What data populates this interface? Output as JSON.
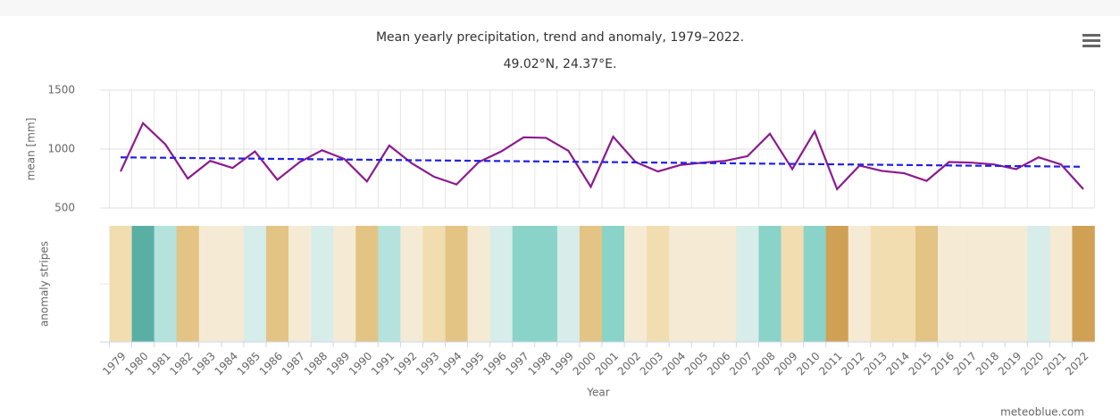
{
  "chart_data": {
    "type": "line",
    "title": "Mean yearly precipitation, trend and anomaly, 1979–2022.",
    "subtitle": "49.02°N, 24.37°E.",
    "x_label": "Year",
    "y_label": "mean [mm]",
    "stripes_label": "anomaly stripes",
    "credit": "meteoblue.com",
    "categories": [
      "1979",
      "1980",
      "1981",
      "1982",
      "1983",
      "1984",
      "1985",
      "1986",
      "1987",
      "1988",
      "1989",
      "1990",
      "1991",
      "1992",
      "1993",
      "1994",
      "1995",
      "1996",
      "1997",
      "1998",
      "1999",
      "2000",
      "2001",
      "2002",
      "2003",
      "2004",
      "2005",
      "2006",
      "2007",
      "2008",
      "2009",
      "2010",
      "2011",
      "2012",
      "2013",
      "2014",
      "2015",
      "2016",
      "2017",
      "2018",
      "2019",
      "2020",
      "2021",
      "2022"
    ],
    "series": [
      {
        "color": "#8b1a8e",
        "values": [
          810,
          1220,
          1040,
          750,
          900,
          840,
          980,
          740,
          890,
          990,
          915,
          725,
          1030,
          880,
          765,
          700,
          890,
          980,
          1100,
          1095,
          985,
          680,
          1105,
          890,
          810,
          865,
          885,
          900,
          940,
          1130,
          830,
          1150,
          660,
          860,
          815,
          795,
          730,
          890,
          885,
          870,
          830,
          930,
          870,
          660
        ]
      }
    ],
    "trend": {
      "color": "#2020e8",
      "x": [
        1979,
        2022
      ],
      "values": [
        930,
        850
      ]
    },
    "stripe_colors": [
      "#f2ddb0",
      "#5aafa5",
      "#b5e2dc",
      "#e3c484",
      "#f5ebd5",
      "#f5ebd5",
      "#d6ede9",
      "#e3c484",
      "#f5ebd5",
      "#d6ede9",
      "#f5ebd5",
      "#e3c484",
      "#b5e2dc",
      "#f5ebd5",
      "#f2ddb0",
      "#e3c484",
      "#f5ebd5",
      "#d6ede9",
      "#8ad3c8",
      "#8ad3c8",
      "#d6ede9",
      "#e3c484",
      "#8ad3c8",
      "#f5ebd5",
      "#f2ddb0",
      "#f5ebd5",
      "#f5ebd5",
      "#f5ebd5",
      "#d6ede9",
      "#8ad3c8",
      "#f2ddb0",
      "#8ad3c8",
      "#d0a055",
      "#f5ebd5",
      "#f2ddb0",
      "#f2ddb0",
      "#e3c484",
      "#f5ebd5",
      "#f5ebd5",
      "#f5ebd5",
      "#f5ebd5",
      "#d6ede9",
      "#f5ebd5",
      "#d0a055"
    ],
    "ylim": [
      500,
      1500
    ],
    "yticks": [
      500,
      1000,
      1500
    ],
    "grid": true
  }
}
